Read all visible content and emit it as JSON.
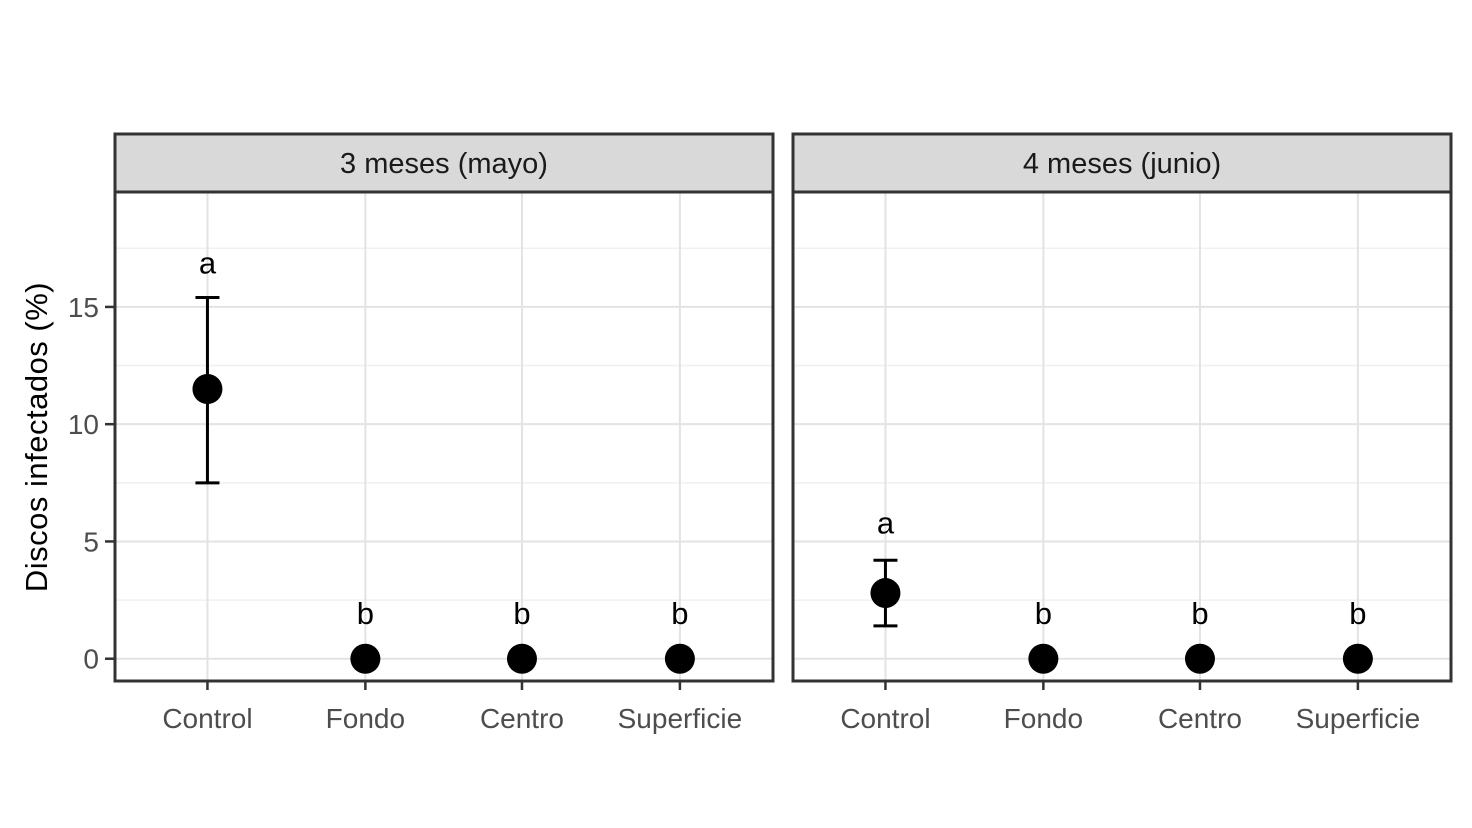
{
  "colors": {
    "panel_background": "#ffffff",
    "panel_border": "#333333",
    "strip_background": "#d9d9d9",
    "strip_border": "#333333",
    "grid_major": "#e3e3e3",
    "grid_minor": "#f0f0f0",
    "tick_mark": "#333333",
    "tick_label_text": "#4d4d4d",
    "point": "#000000",
    "error_bar": "#000000"
  },
  "chart_data": {
    "type": "scatter",
    "title": "",
    "xlabel": "",
    "ylabel": "Discos infectados (%)",
    "categories": [
      "Control",
      "Fondo",
      "Centro",
      "Superficie"
    ],
    "y_ticks": [
      0,
      5,
      10,
      15
    ],
    "y_minor_gridlines": [
      2.5,
      7.5,
      12.5,
      17.5
    ],
    "ylim": [
      -0.95,
      19.9
    ],
    "grid": "major and minor horizontal, major vertical at categories",
    "legend": "none",
    "facets": [
      {
        "label": "3 meses (mayo)",
        "points": [
          {
            "category": "Control",
            "mean": 11.5,
            "ymin": 7.5,
            "ymax": 15.4,
            "letter": "a",
            "letter_y": 16.9
          },
          {
            "category": "Fondo",
            "mean": 0,
            "ymin": 0,
            "ymax": 0,
            "letter": "b",
            "letter_y": 1.95
          },
          {
            "category": "Centro",
            "mean": 0,
            "ymin": 0,
            "ymax": 0,
            "letter": "b",
            "letter_y": 1.95
          },
          {
            "category": "Superficie",
            "mean": 0,
            "ymin": 0,
            "ymax": 0,
            "letter": "b",
            "letter_y": 1.95
          }
        ]
      },
      {
        "label": "4 meses (junio)",
        "points": [
          {
            "category": "Control",
            "mean": 2.8,
            "ymin": 1.4,
            "ymax": 4.2,
            "letter": "a",
            "letter_y": 5.8
          },
          {
            "category": "Fondo",
            "mean": 0,
            "ymin": 0,
            "ymax": 0,
            "letter": "b",
            "letter_y": 1.95
          },
          {
            "category": "Centro",
            "mean": 0,
            "ymin": 0,
            "ymax": 0,
            "letter": "b",
            "letter_y": 1.95
          },
          {
            "category": "Superficie",
            "mean": 0,
            "ymin": 0,
            "ymax": 0,
            "letter": "b",
            "letter_y": 1.95
          }
        ]
      }
    ]
  }
}
